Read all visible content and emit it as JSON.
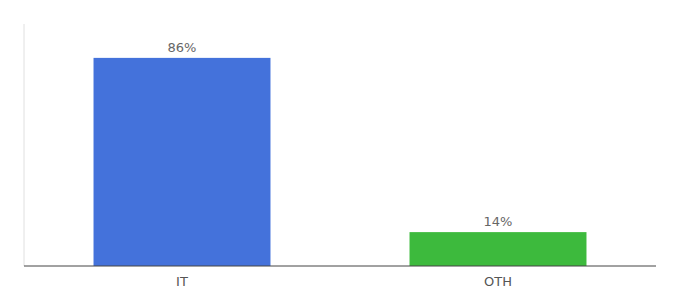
{
  "chart_data": {
    "type": "bar",
    "categories": [
      "IT",
      "OTH"
    ],
    "values": [
      86,
      14
    ],
    "value_labels": [
      "86%",
      "14%"
    ],
    "colors": [
      "#4472db",
      "#3dba3d"
    ],
    "ylim": [
      0,
      100
    ],
    "data_labels": true,
    "tick_labels": "x"
  }
}
